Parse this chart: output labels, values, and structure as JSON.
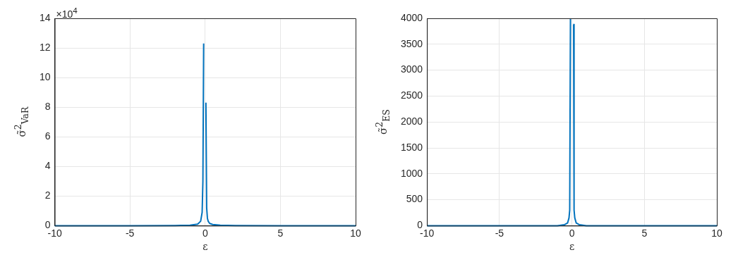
{
  "chart_data": [
    {
      "type": "line",
      "xlabel": "ε",
      "ylabel": "σ̃$^{2}$$_{VaR}$",
      "annotations": [
        "×10$^{4}$"
      ],
      "x": [
        -10,
        -5,
        -2,
        -1,
        -0.5,
        -0.3,
        -0.2,
        -0.15,
        -0.1,
        0,
        0.05,
        0.1,
        0.15,
        0.2,
        0.3,
        0.5,
        1,
        2,
        5,
        10
      ],
      "series": [
        {
          "color": "#0072bd",
          "values": [
            0,
            0,
            0.01,
            0.03,
            0.1,
            0.3,
            0.9,
            3,
            12.3,
            null,
            8.3,
            1.2,
            0.5,
            0.3,
            0.15,
            0.08,
            0.03,
            0.01,
            0,
            0
          ]
        }
      ],
      "xlim": [
        -10,
        10
      ],
      "xticks": [
        -10,
        -5,
        0,
        5,
        10
      ],
      "ylim": [
        0,
        14
      ],
      "yticks": [
        0,
        2,
        4,
        6,
        8,
        10,
        12,
        14
      ],
      "grid": true,
      "marker": "none",
      "line_style": "solid"
    },
    {
      "type": "line",
      "xlabel": "ε",
      "ylabel": "σ̃$^{2}$$_{ES}$",
      "x": [
        -10,
        -5,
        -2,
        -1,
        -0.5,
        -0.3,
        -0.2,
        -0.15,
        -0.1,
        0,
        0.1,
        0.12,
        0.15,
        0.2,
        0.3,
        0.5,
        1,
        2,
        5,
        10
      ],
      "series": [
        {
          "color": "#0072bd",
          "values": [
            0,
            0,
            0,
            0,
            20,
            50,
            150,
            300,
            4000,
            null,
            3880,
            3880,
            300,
            150,
            50,
            20,
            0,
            0,
            0,
            0
          ]
        }
      ],
      "xlim": [
        -10,
        10
      ],
      "xticks": [
        -10,
        -5,
        0,
        5,
        10
      ],
      "ylim": [
        0,
        4000
      ],
      "yticks": [
        0,
        500,
        1000,
        1500,
        2000,
        2500,
        3000,
        3500,
        4000
      ],
      "grid": true,
      "marker": "none",
      "line_style": "solid"
    }
  ]
}
